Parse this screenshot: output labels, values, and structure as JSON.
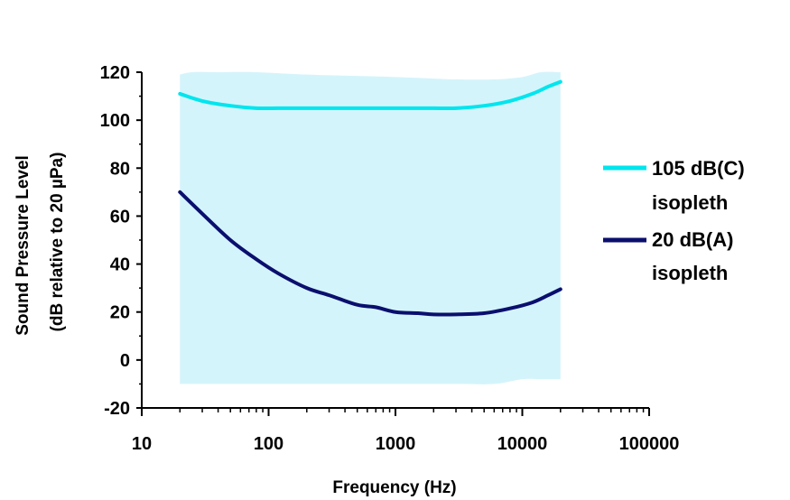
{
  "chart_data": {
    "type": "line",
    "title": "",
    "xlabel": "Frequency (Hz)",
    "ylabel_line1": "Sound Pressure Level",
    "ylabel_line2": "(dB relative to 20 µPa)",
    "x_scale": "log",
    "xlim": [
      10,
      100000
    ],
    "ylim": [
      -20,
      120
    ],
    "x_ticks": [
      "10",
      "100",
      "1000",
      "10000",
      "100000"
    ],
    "y_ticks": [
      "-20",
      "0",
      "20",
      "40",
      "60",
      "80",
      "100",
      "120"
    ],
    "grid": false,
    "legend_position": "right",
    "colors": {
      "band": "#d4f4fb",
      "series_105": "#00e5ee",
      "series_20": "#0a0f6e",
      "axis": "#000000"
    },
    "band": {
      "x": [
        20,
        25,
        40,
        80,
        200,
        1000,
        3000,
        6000,
        10000,
        14000,
        20000
      ],
      "upper": [
        119,
        120,
        120,
        120,
        119,
        118,
        117,
        117,
        118,
        120,
        120
      ],
      "lower": [
        -10,
        -10,
        -10,
        -10,
        -10,
        -10,
        -10,
        -10,
        -8,
        -8,
        -8
      ]
    },
    "series": [
      {
        "name": "105 dB(C) isopleth",
        "legend_line1": "105 dB(C)",
        "legend_line2": "isopleth",
        "x": [
          20,
          30,
          50,
          80,
          120,
          200,
          500,
          1000,
          2000,
          3000,
          5000,
          8000,
          12000,
          16000,
          20000
        ],
        "y": [
          111,
          108,
          106,
          105,
          105,
          105,
          105,
          105,
          105,
          105,
          106,
          108,
          111,
          114,
          116
        ]
      },
      {
        "name": "20 dB(A) isopleth",
        "legend_line1": "20 dB(A)",
        "legend_line2": "isopleth",
        "x": [
          20,
          30,
          50,
          80,
          120,
          200,
          300,
          500,
          700,
          1000,
          1500,
          2000,
          3000,
          5000,
          8000,
          12000,
          16000,
          20000
        ],
        "y": [
          70,
          61,
          50,
          42,
          36,
          30,
          27,
          23,
          22,
          20,
          19.5,
          19,
          19,
          19.5,
          21.5,
          24,
          27,
          29.5
        ]
      }
    ]
  }
}
